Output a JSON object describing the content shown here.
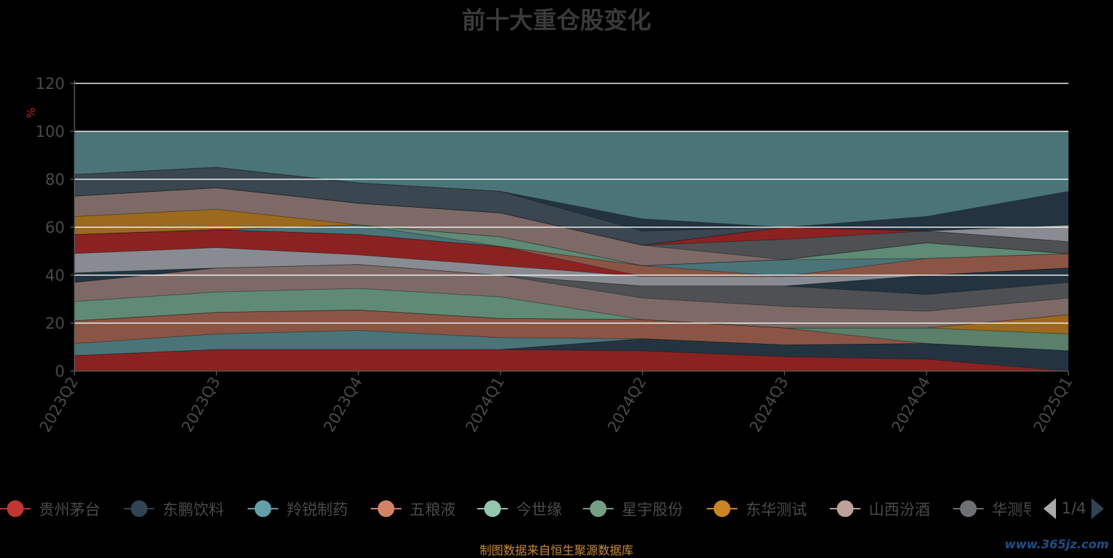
{
  "title": "前十大重仓股变化",
  "source_note": "制图数据来自恒生聚源数据库",
  "watermark": "www.365jz.com",
  "legend": {
    "items": [
      {
        "label": "贵州茅台",
        "color": "#c23531"
      },
      {
        "label": "东鹏饮料",
        "color": "#2f4554"
      },
      {
        "label": "羚锐制药",
        "color": "#61a0a8"
      },
      {
        "label": "五粮液",
        "color": "#d48265"
      },
      {
        "label": "今世缘",
        "color": "#91c7ae"
      },
      {
        "label": "星宇股份",
        "color": "#749f83"
      },
      {
        "label": "东华测试",
        "color": "#ca8622"
      },
      {
        "label": "山西汾酒",
        "color": "#bda29a"
      },
      {
        "label": "华测导航",
        "color": "#6e7074"
      }
    ],
    "page_text": "1/4"
  },
  "chart_data": {
    "type": "area",
    "stacked": true,
    "title": "前十大重仓股变化",
    "ylabel": "%",
    "ylim": [
      0,
      120
    ],
    "yticks": [
      0,
      20,
      40,
      60,
      80,
      100,
      120
    ],
    "categories": [
      "2023Q2",
      "2023Q3",
      "2023Q4",
      "2024Q1",
      "2024Q2",
      "2024Q3",
      "2024Q4",
      "2025Q1"
    ],
    "grid": true,
    "legend_position": "bottom",
    "background_fill": {
      "value": 100,
      "color": "#4a7478"
    },
    "layers": [
      {
        "color": "#8b2222",
        "values": [
          6.5,
          9,
          9,
          9,
          8.5,
          6,
          5,
          0
        ]
      },
      {
        "color": "#233440",
        "values": [
          0,
          0,
          0,
          0,
          5,
          5,
          6.5,
          8.5
        ]
      },
      {
        "color": "#4a7478",
        "values": [
          5,
          6.5,
          8,
          5,
          0,
          0,
          0,
          0
        ]
      },
      {
        "color": "#8b5545",
        "values": [
          9.5,
          9,
          8.5,
          8,
          8,
          7,
          0,
          0
        ]
      },
      {
        "color": "#5a7f6a",
        "values": [
          0,
          0,
          0,
          0,
          0,
          0,
          6.5,
          7
        ]
      },
      {
        "color": "#9c6a1c",
        "values": [
          0,
          0,
          0,
          0,
          0,
          0,
          0,
          8
        ]
      },
      {
        "color": "#5f8a76",
        "values": [
          8,
          8.5,
          9,
          9,
          0,
          0,
          0,
          0
        ]
      },
      {
        "color": "#7d6a66",
        "values": [
          8,
          10,
          10,
          9,
          9,
          9,
          7,
          7
        ]
      },
      {
        "color": "#4f5053",
        "values": [
          0,
          0,
          0,
          0,
          5,
          8.5,
          7,
          6.5
        ]
      },
      {
        "color": "#233440",
        "values": [
          4,
          0,
          0,
          0,
          0,
          0,
          8,
          6
        ]
      },
      {
        "color": "#888c92",
        "values": [
          8,
          8.5,
          4,
          4,
          4,
          4,
          0,
          0
        ]
      },
      {
        "color": "#8b2222",
        "values": [
          8,
          7.5,
          8.5,
          8,
          0,
          0,
          0,
          0
        ]
      },
      {
        "color": "#8b5545",
        "values": [
          0,
          0,
          0,
          0,
          4.5,
          0,
          7,
          6
        ]
      },
      {
        "color": "#4a7478",
        "values": [
          0,
          0,
          4,
          0,
          0,
          7,
          0,
          0
        ]
      },
      {
        "color": "#5f8a76",
        "values": [
          0,
          0,
          0,
          4,
          0,
          0,
          6.5,
          0
        ]
      },
      {
        "color": "#9c6a1c",
        "values": [
          7.5,
          8.5,
          0,
          0,
          0,
          0,
          0,
          0
        ]
      },
      {
        "color": "#7d6a66",
        "values": [
          8.5,
          9,
          9,
          10,
          8.5,
          0,
          0,
          0
        ]
      },
      {
        "color": "#4f5053",
        "values": [
          0,
          0,
          0,
          0,
          0,
          8.5,
          5,
          5
        ]
      },
      {
        "color": "#8b2222",
        "values": [
          0,
          0,
          0,
          0,
          0,
          5,
          0,
          0
        ]
      },
      {
        "color": "#888c92",
        "values": [
          0,
          0,
          0,
          0,
          0,
          0,
          0,
          7
        ]
      },
      {
        "color": "#3a4650",
        "values": [
          9,
          8.5,
          8.5,
          9,
          6,
          0,
          0,
          0
        ]
      },
      {
        "color": "#233440",
        "values": [
          0,
          0,
          0,
          0,
          5,
          0,
          6,
          14
        ]
      }
    ]
  }
}
